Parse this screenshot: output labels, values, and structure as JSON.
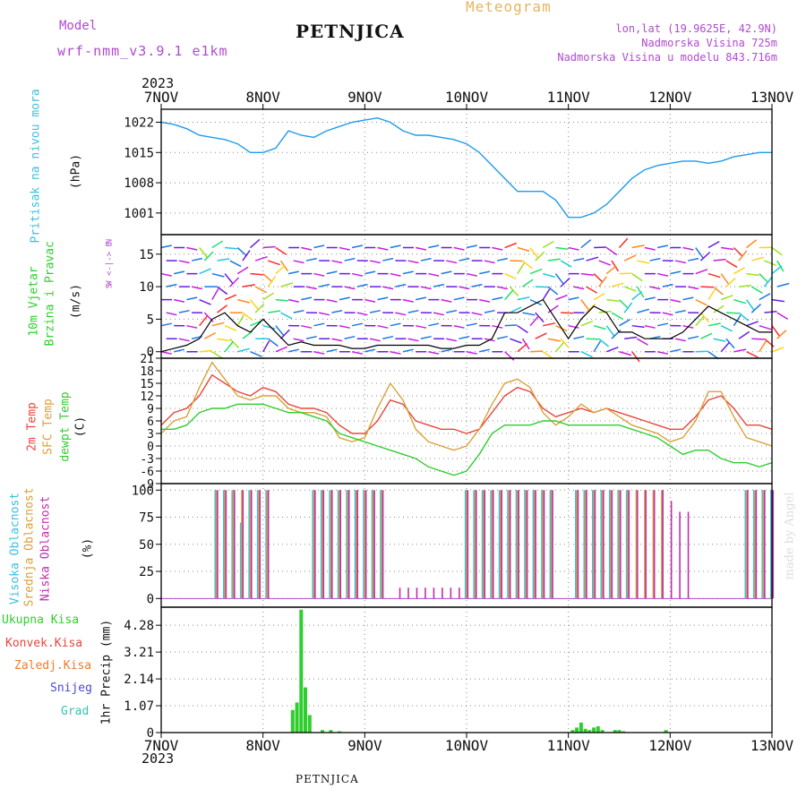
{
  "header": {
    "model_label": "Model",
    "model_name": "wrf-nmm_v3.9.1 e1km",
    "title": "PETNJICA",
    "meteogram_label": "Meteogram",
    "lonlat": "lon,lat (19.9625E, 42.9N)",
    "altitude": "Nadmorska Visina 725m",
    "model_altitude": "Nadmorska Visina u modelu 843.716m",
    "year_top": "2023",
    "year_bottom": "2023",
    "footer_title": "PETNJICA",
    "credit": "made by Angel"
  },
  "colors": {
    "pressure": "#1e9bea",
    "temp2m": "#e8463c",
    "sfc": "#d9a13b",
    "dewpt": "#2fce2f",
    "high_cloud": "#3bbfe0",
    "mid_cloud": "#d9a13b",
    "low_cloud": "#c02ea8",
    "total_precip": "#2fce2f",
    "conv_precip": "#e8463c",
    "strat_precip": "#ef7a2e",
    "snow": "#4a4ad8",
    "hail": "#3bbfb0",
    "title_purple": "#b04ad0",
    "meteogram": "#e8b460"
  },
  "chart_data": [
    {
      "type": "line",
      "name": "pressure",
      "ylabel_1": "Pritisak na nivou mora",
      "ylabel_2": "(hPa)",
      "x_ticks": [
        "7NOV",
        "8NOV",
        "9NOV",
        "10NOV",
        "11NOV",
        "12NOV",
        "13NOV"
      ],
      "xlim": [
        0,
        144
      ],
      "ylim": [
        996,
        1025
      ],
      "yticks": [
        "1022",
        "1015",
        "1008",
        "1001"
      ],
      "ytick_values": [
        1022,
        1015,
        1008,
        1001
      ],
      "x": [
        0,
        3,
        6,
        9,
        12,
        15,
        18,
        21,
        24,
        27,
        30,
        33,
        36,
        39,
        42,
        45,
        48,
        51,
        54,
        57,
        60,
        63,
        66,
        69,
        72,
        75,
        78,
        81,
        84,
        87,
        90,
        93,
        96,
        99,
        102,
        105,
        108,
        111,
        114,
        117,
        120,
        123,
        126,
        129,
        132,
        135,
        138,
        141,
        144
      ],
      "values": [
        1022,
        1021.5,
        1020.5,
        1019,
        1018.5,
        1018,
        1017,
        1015,
        1015,
        1016,
        1020,
        1019,
        1018.5,
        1020,
        1021,
        1022,
        1022.5,
        1023,
        1022,
        1020,
        1019,
        1019,
        1018.5,
        1018,
        1017,
        1015,
        1012,
        1009,
        1006,
        1006,
        1006,
        1004,
        1000,
        1000,
        1001,
        1003,
        1006,
        1009,
        1011,
        1012,
        1012.5,
        1013,
        1013,
        1012.5,
        1013,
        1014,
        1014.5,
        1015,
        1015
      ]
    },
    {
      "type": "line",
      "name": "wind",
      "ylabel_1": "10m Vjetar",
      "ylabel_2": "Brzina i Pravac",
      "ylabel_3": "(m/s)",
      "compass_n": "N",
      "compass_we": "W <-|-> E",
      "compass_s": "S",
      "xlim": [
        0,
        144
      ],
      "ylim": [
        -1,
        18
      ],
      "yticks": [
        "15",
        "10",
        "5",
        "0"
      ],
      "ytick_values": [
        15,
        10,
        5,
        0
      ],
      "x": [
        0,
        3,
        6,
        9,
        12,
        15,
        18,
        21,
        24,
        27,
        30,
        33,
        36,
        39,
        42,
        45,
        48,
        51,
        54,
        57,
        60,
        63,
        66,
        69,
        72,
        75,
        78,
        81,
        84,
        87,
        90,
        93,
        96,
        99,
        102,
        105,
        108,
        111,
        114,
        117,
        120,
        123,
        126,
        129,
        132,
        135,
        138,
        141,
        144
      ],
      "values": [
        0,
        0.5,
        1,
        2,
        5,
        6,
        4,
        3,
        5,
        3,
        1,
        1.5,
        1,
        1,
        1,
        0.5,
        0.5,
        1,
        1,
        1,
        1,
        1,
        0.5,
        0.5,
        1,
        1,
        2,
        6,
        6,
        7,
        8,
        5,
        2,
        5,
        7,
        6,
        3,
        3,
        2,
        2,
        2,
        3,
        5,
        7,
        6,
        5,
        4,
        3,
        3
      ],
      "gust": [
        0,
        1,
        3,
        6,
        8,
        9,
        10,
        9,
        11,
        10,
        3,
        2,
        2,
        1,
        1,
        1,
        1,
        2,
        2,
        2,
        2,
        2,
        1,
        1,
        2,
        2,
        4,
        9,
        10,
        11,
        12,
        9,
        4,
        9,
        11,
        10,
        6,
        6,
        4,
        4,
        4,
        5,
        8,
        10,
        9,
        8,
        7,
        6,
        6
      ]
    },
    {
      "type": "line",
      "name": "temperature",
      "ylabel_1": "2m Temp",
      "ylabel_2": "SFC Temp",
      "ylabel_3": "dewpt Temp",
      "ylabel_4": "(C)",
      "xlim": [
        0,
        144
      ],
      "ylim": [
        -9,
        21
      ],
      "yticks": [
        "21",
        "18",
        "15",
        "12",
        "9",
        "6",
        "3",
        "0",
        "-3",
        "-6",
        "-9"
      ],
      "ytick_values": [
        21,
        18,
        15,
        12,
        9,
        6,
        3,
        0,
        -3,
        -6,
        -9
      ],
      "x": [
        0,
        3,
        6,
        9,
        12,
        15,
        18,
        21,
        24,
        27,
        30,
        33,
        36,
        39,
        42,
        45,
        48,
        51,
        54,
        57,
        60,
        63,
        66,
        69,
        72,
        75,
        78,
        81,
        84,
        87,
        90,
        93,
        96,
        99,
        102,
        105,
        108,
        111,
        114,
        117,
        120,
        123,
        126,
        129,
        132,
        135,
        138,
        141,
        144
      ],
      "series": [
        {
          "name": "2m",
          "values": [
            5,
            8,
            9,
            12,
            17,
            15,
            13,
            12,
            14,
            13,
            10,
            9,
            9,
            8,
            5,
            3,
            3,
            6,
            11,
            10,
            6,
            5,
            4,
            4,
            3,
            4,
            8,
            12,
            14,
            13,
            9,
            7,
            8,
            9,
            8,
            9,
            8,
            7,
            6,
            5,
            4,
            4,
            7,
            11,
            12,
            9,
            5,
            5,
            4
          ]
        },
        {
          "name": "sfc",
          "values": [
            3,
            6,
            7,
            14,
            20,
            16,
            12,
            11,
            12,
            12,
            9,
            8,
            8,
            7,
            2,
            1,
            2,
            9,
            15,
            11,
            4,
            1,
            0,
            -1,
            0,
            4,
            10,
            15,
            16,
            14,
            8,
            5,
            7,
            10,
            8,
            9,
            7,
            5,
            4,
            3,
            1,
            2,
            6,
            13,
            13,
            7,
            2,
            1,
            0
          ]
        },
        {
          "name": "dewpt",
          "values": [
            4,
            4,
            5,
            8,
            9,
            9,
            10,
            10,
            10,
            9,
            8,
            8,
            7,
            6,
            3,
            2,
            1,
            0,
            -1,
            -2,
            -3,
            -5,
            -6,
            -7,
            -6,
            -2,
            3,
            5,
            5,
            5,
            6,
            6,
            5,
            5,
            5,
            5,
            5,
            4,
            3,
            2,
            0,
            -2,
            -1,
            -1,
            -3,
            -4,
            -4,
            -5,
            -4
          ]
        }
      ]
    },
    {
      "type": "bar",
      "name": "cloud",
      "ylabel_1": "Visoka Oblacnost",
      "ylabel_2": "Srednja Oblacnost",
      "ylabel_3": "Niska Oblacnost",
      "ylabel_4": "(%)",
      "xlim": [
        0,
        144
      ],
      "ylim": [
        -8,
        106
      ],
      "yticks": [
        "100",
        "75",
        "50",
        "25",
        "0"
      ],
      "ytick_values": [
        100,
        75,
        50,
        25,
        0
      ],
      "x": [
        13,
        15,
        17,
        19,
        21,
        23,
        25,
        36,
        38,
        40,
        42,
        44,
        46,
        48,
        50,
        52,
        56,
        58,
        60,
        62,
        64,
        66,
        68,
        70,
        72,
        74,
        76,
        78,
        80,
        82,
        84,
        86,
        88,
        90,
        92,
        98,
        100,
        102,
        104,
        106,
        108,
        110,
        112,
        114,
        116,
        118,
        120,
        122,
        124,
        138,
        140,
        142,
        144
      ],
      "series": [
        {
          "name": "high",
          "values": [
            100,
            100,
            100,
            70,
            100,
            100,
            100,
            100,
            100,
            100,
            100,
            100,
            100,
            100,
            100,
            100,
            0,
            0,
            0,
            0,
            0,
            0,
            0,
            0,
            100,
            100,
            100,
            100,
            100,
            100,
            100,
            100,
            100,
            100,
            100,
            100,
            100,
            100,
            100,
            100,
            100,
            100,
            0,
            0,
            0,
            0,
            0,
            0,
            0,
            100,
            100,
            100,
            100
          ]
        },
        {
          "name": "mid",
          "values": [
            100,
            100,
            100,
            100,
            100,
            100,
            100,
            100,
            100,
            100,
            100,
            100,
            100,
            100,
            100,
            100,
            0,
            0,
            0,
            0,
            0,
            0,
            0,
            0,
            100,
            100,
            100,
            100,
            100,
            100,
            100,
            100,
            100,
            100,
            100,
            100,
            100,
            100,
            100,
            100,
            100,
            100,
            100,
            100,
            100,
            100,
            0,
            0,
            0,
            100,
            100,
            100,
            100
          ]
        },
        {
          "name": "low",
          "values": [
            100,
            100,
            100,
            100,
            100,
            100,
            100,
            100,
            100,
            100,
            100,
            100,
            100,
            100,
            100,
            100,
            10,
            10,
            10,
            10,
            10,
            10,
            10,
            10,
            100,
            100,
            100,
            100,
            100,
            100,
            100,
            100,
            100,
            100,
            100,
            100,
            100,
            100,
            100,
            100,
            100,
            100,
            100,
            100,
            100,
            100,
            90,
            80,
            80,
            100,
            100,
            100,
            100
          ]
        }
      ]
    },
    {
      "type": "bar",
      "name": "precip",
      "legend_1": "Ukupna Kisa",
      "legend_2": "Konvek.Kisa",
      "legend_3": "Zaledj.Kisa",
      "legend_4": "Snijeg",
      "legend_5": "Grad",
      "ylabel": "1hr Precip (mm)",
      "x_ticks": [
        "7NOV",
        "8NOV",
        "9NOV",
        "10NOV",
        "11NOV",
        "12NOV",
        "13NOV"
      ],
      "xlim": [
        0,
        144
      ],
      "ylim": [
        0,
        5
      ],
      "yticks": [
        "4.28",
        "3.21",
        "2.14",
        "1.07",
        "0"
      ],
      "ytick_values": [
        4.28,
        3.21,
        2.14,
        1.07,
        0
      ],
      "x": [
        31,
        32,
        33,
        34,
        35,
        38,
        40,
        42,
        97,
        98,
        99,
        100,
        101,
        102,
        103,
        104,
        107,
        108,
        109,
        119
      ],
      "values": [
        0.9,
        1.2,
        4.9,
        1.8,
        0.7,
        0.1,
        0.1,
        0.05,
        0.1,
        0.2,
        0.4,
        0.15,
        0.1,
        0.2,
        0.25,
        0.1,
        0.1,
        0.1,
        0.05,
        0.1
      ]
    }
  ]
}
